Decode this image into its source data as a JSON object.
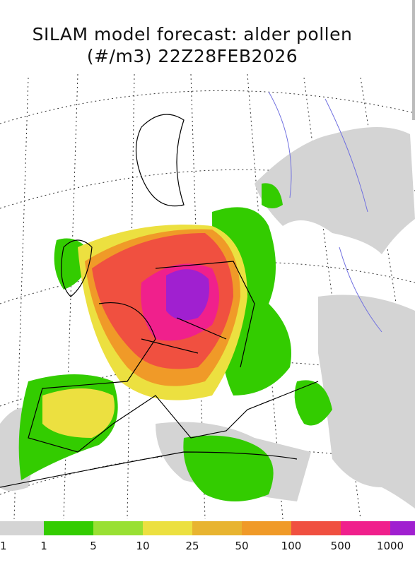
{
  "header": {
    "title_line1": "SILAM model forecast: alder pollen",
    "title_line2": "(#/m3) 22Z28FEB2026"
  },
  "colorbar": {
    "colors": [
      "#d4d4d4",
      "#33cc00",
      "#99e033",
      "#ece040",
      "#e8b430",
      "#f09a28",
      "#f05040",
      "#f0208c",
      "#a020d0"
    ],
    "labels": [
      "1",
      "1",
      "5",
      "10",
      "25",
      "50",
      "100",
      "500",
      "1000"
    ]
  }
}
